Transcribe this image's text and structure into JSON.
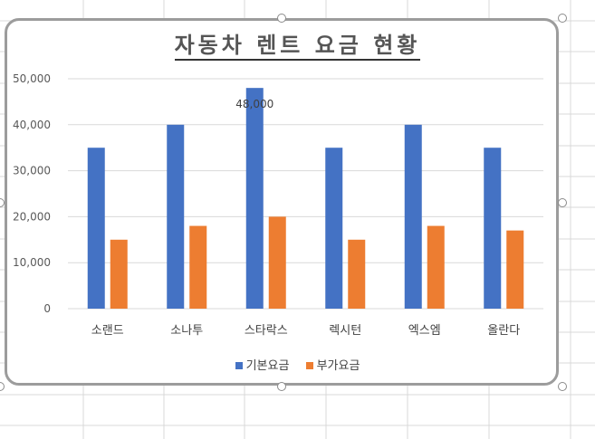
{
  "chart_data": {
    "type": "bar",
    "title": "자동차 렌트 요금 현황",
    "categories": [
      "소랜드",
      "소나투",
      "스타락스",
      "렉시턴",
      "엑스엠",
      "올란다"
    ],
    "series": [
      {
        "name": "기본요금",
        "color": "#4472C4",
        "values": [
          35000,
          40000,
          48000,
          35000,
          40000,
          35000
        ]
      },
      {
        "name": "부가요금",
        "color": "#ED7D31",
        "values": [
          15000,
          18000,
          20000,
          15000,
          18000,
          17000
        ]
      }
    ],
    "yticks": [
      "0",
      "10,000",
      "20,000",
      "30,000",
      "40,000",
      "50,000"
    ],
    "ylim": [
      0,
      50000
    ],
    "data_labels": [
      {
        "series": 0,
        "index": 2,
        "text": "48,000"
      }
    ],
    "grid": true,
    "legend_position": "bottom"
  }
}
